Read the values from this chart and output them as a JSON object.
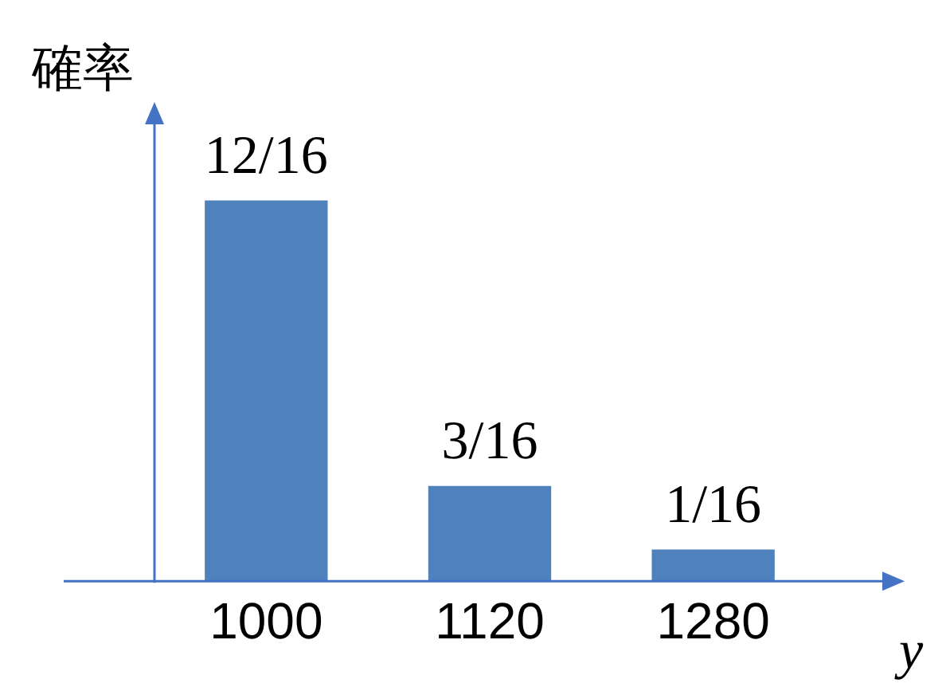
{
  "chart_data": {
    "type": "bar",
    "ylabel": "確率",
    "xlabel": "y",
    "categories": [
      "1000",
      "1120",
      "1280"
    ],
    "values": [
      0.75,
      0.1875,
      0.0625
    ],
    "value_labels": [
      "12/16",
      "3/16",
      "1/16"
    ],
    "color": "#4f81bd",
    "grid": false,
    "legend": false
  }
}
